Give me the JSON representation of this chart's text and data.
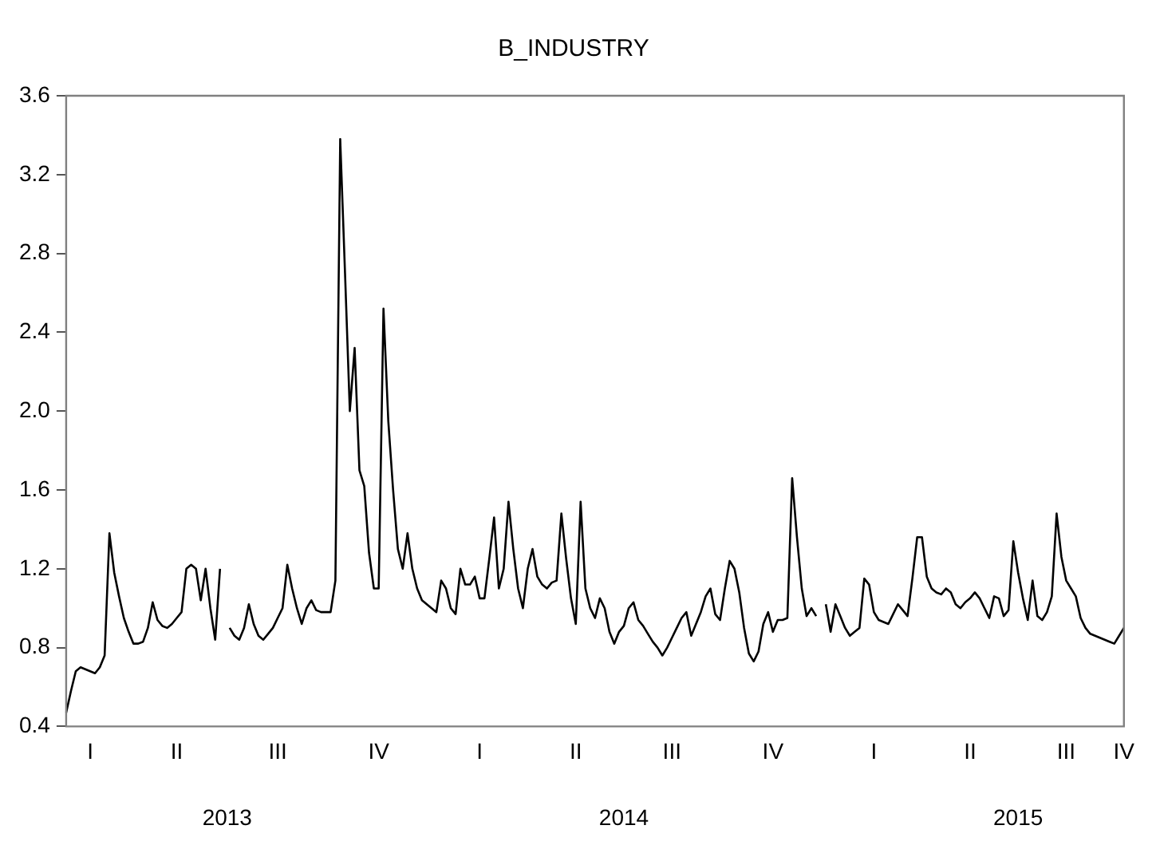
{
  "chart_data": {
    "type": "line",
    "title": "B_INDUSTRY",
    "color": "#000000",
    "grid": false,
    "legend": false,
    "marker": "none",
    "line_style": "solid",
    "categories": [
      null,
      null,
      null,
      null,
      null,
      "I",
      null,
      null,
      null,
      null,
      null,
      null,
      null,
      null,
      null,
      null,
      null,
      null,
      null,
      null,
      null,
      null,
      null,
      "II",
      null,
      null,
      null,
      null,
      null,
      null,
      null,
      null,
      null,
      null,
      null,
      null,
      null,
      null,
      null,
      null,
      null,
      null,
      null,
      null,
      "III",
      null,
      null,
      null,
      null,
      null,
      null,
      null,
      null,
      null,
      null,
      null,
      null,
      null,
      null,
      null,
      null,
      null,
      null,
      null,
      null,
      "IV",
      null,
      null,
      null,
      null,
      null,
      null,
      null,
      null,
      null,
      null,
      null,
      null,
      null,
      null,
      null,
      null,
      null,
      null,
      null,
      null,
      "I",
      null,
      null,
      null,
      null,
      null,
      null,
      null,
      null,
      null,
      null,
      null,
      null,
      null,
      null,
      null,
      null,
      null,
      null,
      null,
      "II",
      null,
      null,
      null,
      null,
      null,
      null,
      null,
      null,
      null,
      null,
      null,
      null,
      null,
      null,
      null,
      null,
      null,
      null,
      null,
      "III",
      null,
      null,
      null,
      null,
      null,
      null,
      null,
      null,
      null,
      null,
      null,
      null,
      null,
      null,
      null,
      null,
      null,
      null,
      null,
      null,
      "IV",
      null,
      null,
      null,
      null,
      null,
      null,
      null,
      null,
      null,
      null,
      null,
      null,
      null,
      null,
      null,
      null,
      null,
      null,
      null,
      null,
      "I",
      null,
      null,
      null,
      null,
      null,
      null,
      null,
      null,
      null,
      null,
      null,
      null,
      null,
      null,
      null,
      null,
      null,
      null,
      null,
      "II",
      null,
      null,
      null,
      null,
      null,
      null,
      null,
      null,
      null,
      null,
      null,
      null,
      null,
      null,
      null,
      null,
      null,
      null,
      null,
      "III",
      null,
      null,
      null,
      null,
      null,
      null,
      null,
      null,
      null,
      null,
      null,
      "IV"
    ],
    "values": [
      0.47,
      0.58,
      0.68,
      0.7,
      0.69,
      0.68,
      0.67,
      0.7,
      0.76,
      1.38,
      1.18,
      1.06,
      0.95,
      0.88,
      0.82,
      0.82,
      0.83,
      0.9,
      1.03,
      0.94,
      0.91,
      0.9,
      0.92,
      0.95,
      0.98,
      1.2,
      1.22,
      1.2,
      1.04,
      1.2,
      1.0,
      0.84,
      1.2,
      null,
      0.9,
      0.86,
      0.84,
      0.9,
      1.02,
      0.92,
      0.86,
      0.84,
      0.87,
      0.9,
      0.95,
      1.0,
      1.22,
      1.1,
      1.0,
      0.92,
      1.0,
      1.04,
      0.99,
      0.98,
      0.98,
      0.98,
      1.14,
      3.38,
      2.7,
      2.0,
      2.32,
      1.7,
      1.62,
      1.28,
      1.1,
      1.1,
      2.52,
      1.95,
      1.6,
      1.3,
      1.2,
      1.38,
      1.2,
      1.1,
      1.04,
      1.02,
      1.0,
      0.98,
      1.14,
      1.1,
      1.0,
      0.97,
      1.2,
      1.12,
      1.12,
      1.16,
      1.05,
      1.05,
      1.25,
      1.46,
      1.1,
      1.2,
      1.54,
      1.3,
      1.1,
      1.0,
      1.2,
      1.3,
      1.16,
      1.12,
      1.1,
      1.13,
      1.14,
      1.48,
      1.25,
      1.05,
      0.92,
      1.54,
      1.1,
      1.0,
      0.95,
      1.05,
      1.0,
      0.88,
      0.82,
      0.88,
      0.91,
      1.0,
      1.03,
      0.94,
      0.91,
      0.87,
      0.83,
      0.8,
      0.76,
      0.8,
      0.85,
      0.9,
      0.95,
      0.98,
      0.86,
      0.92,
      0.98,
      1.06,
      1.1,
      0.97,
      0.94,
      1.1,
      1.24,
      1.2,
      1.08,
      0.9,
      0.77,
      0.73,
      0.78,
      0.92,
      0.98,
      0.88,
      0.94,
      0.94,
      0.95,
      1.66,
      1.36,
      1.1,
      0.96,
      1.0,
      0.96,
      null,
      1.02,
      0.88,
      1.02,
      0.96,
      0.9,
      0.86,
      0.88,
      0.9,
      1.15,
      1.12,
      0.98,
      0.94,
      0.93,
      0.92,
      0.97,
      1.02,
      0.99,
      0.96,
      1.15,
      1.36,
      1.36,
      1.16,
      1.1,
      1.08,
      1.07,
      1.1,
      1.08,
      1.02,
      1.0,
      1.03,
      1.05,
      1.08,
      1.05,
      1.0,
      0.95,
      1.06,
      1.05,
      0.96,
      0.99,
      1.34,
      1.18,
      1.05,
      0.94,
      1.14,
      0.96,
      0.94,
      0.98,
      1.06,
      1.48,
      1.26,
      1.14,
      1.1,
      1.06,
      0.95,
      0.9,
      0.87,
      0.86,
      0.85,
      0.84,
      0.83,
      0.82,
      0.86,
      0.9
    ],
    "annotations": [
      "2013",
      "2014",
      "2015"
    ],
    "ylim": [
      0.4,
      3.6
    ],
    "yticks": [
      0.4,
      0.8,
      1.2,
      1.6,
      {
        "value": 2,
        "label": "2.0"
      },
      2.4,
      2.8,
      3.2,
      3.6
    ]
  }
}
